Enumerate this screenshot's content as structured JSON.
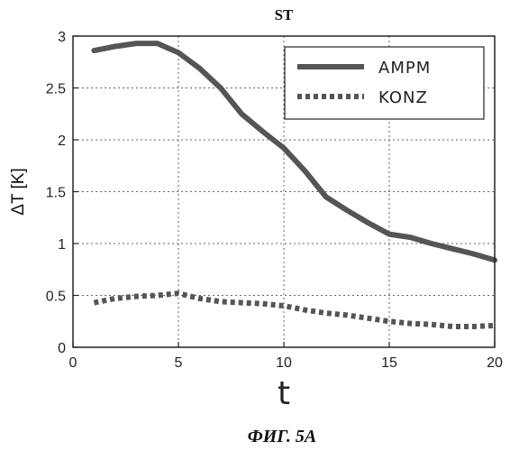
{
  "chart_data": {
    "type": "line",
    "title": "ST",
    "xlabel": "t",
    "ylabel": "ΔT [K]",
    "xlim": [
      0,
      20
    ],
    "ylim": [
      0,
      3
    ],
    "xticks": [
      0,
      5,
      10,
      15,
      20
    ],
    "yticks": [
      0,
      0.5,
      1,
      1.5,
      2,
      2.5,
      3
    ],
    "grid": true,
    "legend_position": "top-right",
    "series": [
      {
        "name": "AMPM",
        "style": "solid",
        "color": "#555555",
        "x": [
          1,
          2,
          3,
          4,
          5,
          6,
          7,
          8,
          9,
          10,
          11,
          12,
          13,
          14,
          15,
          16,
          17,
          18,
          19,
          20
        ],
        "y": [
          2.86,
          2.9,
          2.93,
          2.93,
          2.84,
          2.69,
          2.5,
          2.25,
          2.08,
          1.92,
          1.7,
          1.45,
          1.32,
          1.2,
          1.09,
          1.06,
          1.0,
          0.95,
          0.9,
          0.84
        ]
      },
      {
        "name": "KONZ",
        "style": "dotted",
        "color": "#555555",
        "x": [
          1,
          2,
          3,
          4,
          5,
          6,
          7,
          8,
          9,
          10,
          11,
          12,
          13,
          14,
          15,
          16,
          17,
          18,
          19,
          20
        ],
        "y": [
          0.43,
          0.47,
          0.49,
          0.5,
          0.52,
          0.47,
          0.44,
          0.43,
          0.42,
          0.4,
          0.36,
          0.33,
          0.31,
          0.28,
          0.25,
          0.23,
          0.22,
          0.2,
          0.2,
          0.21
        ]
      }
    ]
  },
  "caption": "ФИГ. 5A"
}
